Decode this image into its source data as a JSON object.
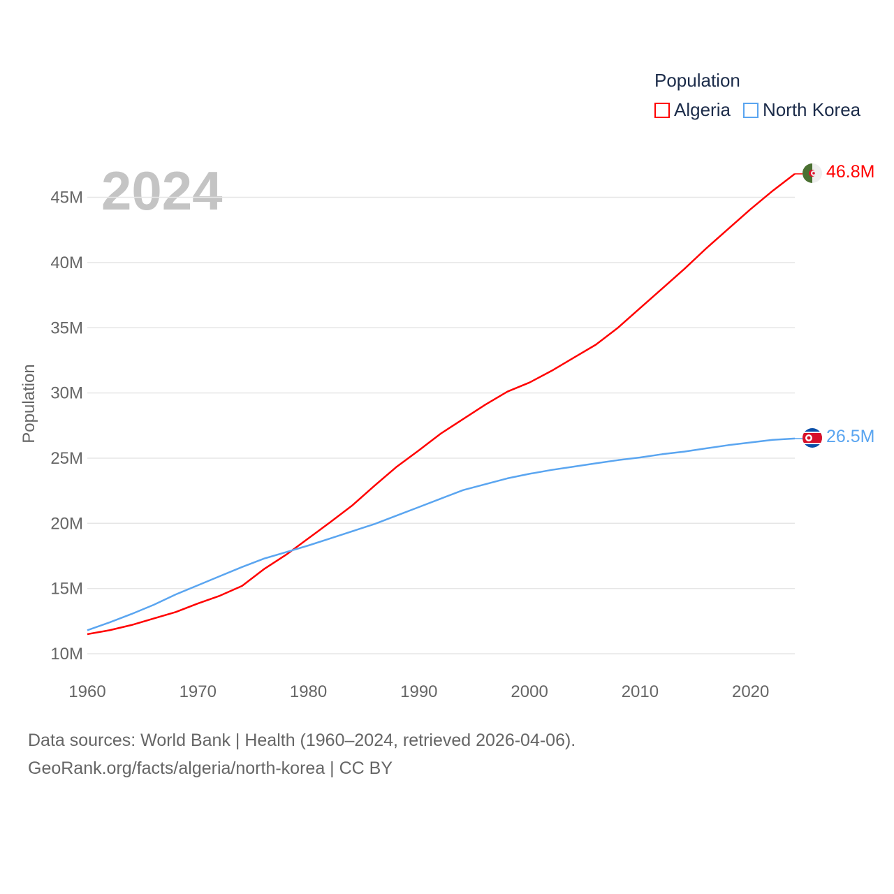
{
  "chart_data": {
    "type": "line",
    "title": "Population",
    "xlabel": "",
    "ylabel": "Population",
    "xlim": [
      1960,
      2024
    ],
    "ylim": [
      10,
      47
    ],
    "y_unit": "millions",
    "grid": true,
    "legend_position": "top-right",
    "current_year_label": "2024",
    "x_ticks": [
      "1960",
      "1970",
      "1980",
      "1990",
      "2000",
      "2010",
      "2020"
    ],
    "y_ticks": [
      "10M",
      "15M",
      "20M",
      "25M",
      "30M",
      "35M",
      "40M",
      "45M"
    ],
    "x": [
      1960,
      1962,
      1964,
      1966,
      1968,
      1970,
      1972,
      1974,
      1976,
      1978,
      1980,
      1982,
      1984,
      1986,
      1988,
      1990,
      1992,
      1994,
      1996,
      1998,
      2000,
      2002,
      2004,
      2006,
      2008,
      2010,
      2012,
      2014,
      2016,
      2018,
      2020,
      2022,
      2024
    ],
    "series": [
      {
        "name": "Algeria",
        "color": "#ff0000",
        "end_label": "46.8M",
        "values": [
          11.5,
          11.8,
          12.2,
          12.7,
          13.2,
          13.85,
          14.45,
          15.2,
          16.5,
          17.6,
          18.85,
          20.1,
          21.4,
          22.9,
          24.35,
          25.6,
          26.9,
          28.0,
          29.1,
          30.1,
          30.8,
          31.7,
          32.7,
          33.7,
          35.0,
          36.5,
          38.0,
          39.5,
          41.1,
          42.6,
          44.1,
          45.5,
          46.8
        ]
      },
      {
        "name": "North Korea",
        "color": "#5aa5f0",
        "end_label": "26.5M",
        "values": [
          11.8,
          12.4,
          13.05,
          13.75,
          14.55,
          15.25,
          15.95,
          16.65,
          17.3,
          17.8,
          18.3,
          18.85,
          19.4,
          19.95,
          20.6,
          21.25,
          21.9,
          22.55,
          23.0,
          23.45,
          23.8,
          24.1,
          24.35,
          24.6,
          24.85,
          25.05,
          25.3,
          25.5,
          25.75,
          26.0,
          26.2,
          26.4,
          26.5
        ]
      }
    ]
  },
  "footer": {
    "line1": "Data sources: World Bank | Health (1960–2024, retrieved 2026-04-06).",
    "line2": "GeoRank.org/facts/algeria/north-korea | CC BY"
  },
  "icons": {
    "algeria": "algeria-flag-icon",
    "north_korea": "north-korea-flag-icon"
  }
}
